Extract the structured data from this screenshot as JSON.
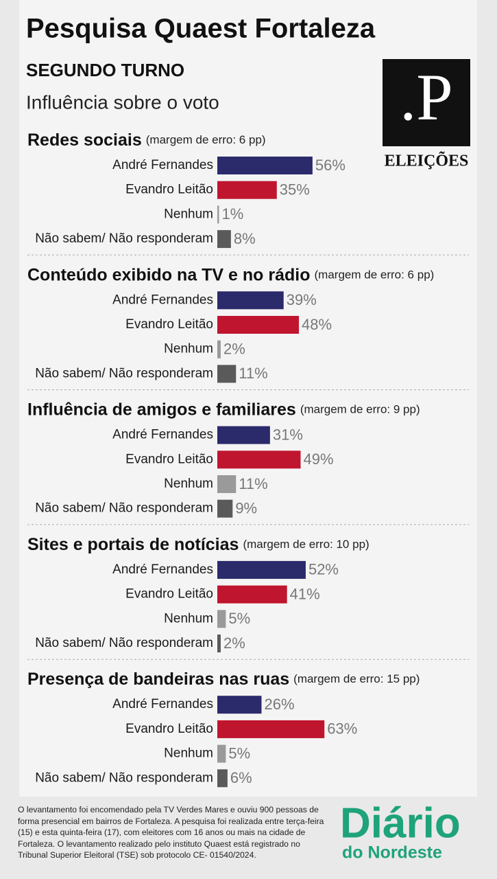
{
  "title": "Pesquisa Quaest Fortaleza",
  "subtitle": "SEGUNDO TURNO",
  "description": "Influência sobre o voto",
  "logo": {
    "mark": ".P",
    "label": "ELEIÇÕES"
  },
  "chart_data": [
    {
      "type": "bar",
      "orientation": "horizontal",
      "title": "Redes sociais",
      "note": "(margem de erro: 6 pp)",
      "categories": [
        "André Fernandes",
        "Evandro Leitão",
        "Nenhum",
        "Não sabem/ Não responderam"
      ],
      "values": [
        56,
        35,
        1,
        8
      ],
      "value_labels": [
        "56%",
        "35%",
        "1%",
        "8%"
      ],
      "colors": [
        "#2b2a6b",
        "#c0152f",
        "#9a9a9a",
        "#5a5a5a"
      ]
    },
    {
      "type": "bar",
      "orientation": "horizontal",
      "title": "Conteúdo exibido na TV e no rádio",
      "note": "(margem de erro: 6 pp)",
      "categories": [
        "André Fernandes",
        "Evandro Leitão",
        "Nenhum",
        "Não sabem/ Não responderam"
      ],
      "values": [
        39,
        48,
        2,
        11
      ],
      "value_labels": [
        "39%",
        "48%",
        "2%",
        "11%"
      ],
      "colors": [
        "#2b2a6b",
        "#c0152f",
        "#9a9a9a",
        "#5a5a5a"
      ]
    },
    {
      "type": "bar",
      "orientation": "horizontal",
      "title": "Influência de amigos e familiares",
      "note": "(margem de erro: 9 pp)",
      "categories": [
        "André Fernandes",
        "Evandro Leitão",
        "Nenhum",
        "Não sabem/ Não responderam"
      ],
      "values": [
        31,
        49,
        11,
        9
      ],
      "value_labels": [
        "31%",
        "49%",
        "11%",
        "9%"
      ],
      "colors": [
        "#2b2a6b",
        "#c0152f",
        "#9a9a9a",
        "#5a5a5a"
      ]
    },
    {
      "type": "bar",
      "orientation": "horizontal",
      "title": "Sites e portais de notícias",
      "note": "(margem de erro: 10 pp)",
      "categories": [
        "André Fernandes",
        "Evandro Leitão",
        "Nenhum",
        "Não sabem/ Não responderam"
      ],
      "values": [
        52,
        41,
        5,
        2
      ],
      "value_labels": [
        "52%",
        "41%",
        "5%",
        "2%"
      ],
      "colors": [
        "#2b2a6b",
        "#c0152f",
        "#9a9a9a",
        "#5a5a5a"
      ]
    },
    {
      "type": "bar",
      "orientation": "horizontal",
      "title": "Presença de bandeiras nas ruas",
      "note": "(margem de erro: 15 pp)",
      "categories": [
        "André Fernandes",
        "Evandro Leitão",
        "Nenhum",
        "Não sabem/ Não responderam"
      ],
      "values": [
        26,
        63,
        5,
        6
      ],
      "value_labels": [
        "26%",
        "63%",
        "5%",
        "6%"
      ],
      "colors": [
        "#2b2a6b",
        "#c0152f",
        "#9a9a9a",
        "#5a5a5a"
      ]
    }
  ],
  "footer": {
    "text": "O levantamento foi encomendado pela TV Verdes Mares e ouviu 900 pessoas de forma presencial em bairros de Fortaleza. A pesquisa foi realizada entre terça-feira (15) e esta quinta-feira (17), com eleitores com 16 anos ou mais na cidade de Fortaleza. O levantamento realizado pelo instituto Quaest está registrado no Tribunal Superior Eleitoral (TSE) sob protocolo CE- 01540/2024.",
    "brand": "Diário",
    "brand_sub": "do Nordeste"
  }
}
